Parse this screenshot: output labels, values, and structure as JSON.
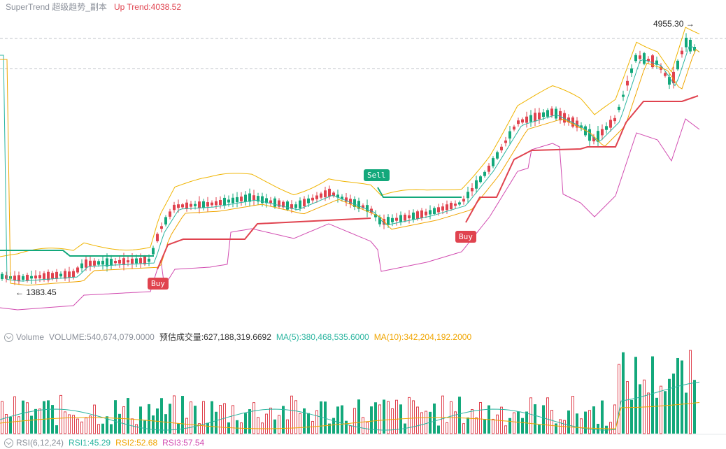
{
  "header": {
    "indicator": "SuperTrend 超级趋势_副本",
    "up_trend_label": "Up Trend:",
    "up_trend_value": "4038.52"
  },
  "price_marks": {
    "high": "4955.30",
    "high_arrow": "→",
    "low": "1383.45",
    "low_arrow": "←"
  },
  "signals": {
    "buy": "Buy",
    "sell": "Sell"
  },
  "volume_header": {
    "title": "Volume",
    "volume": "VOLUME:540,674,079.0000",
    "est": "预估成交量:627,188,319.6692",
    "ma5": "MA(5):380,468,535.6000",
    "ma10": "MA(10):342,204,192.2000"
  },
  "rsi_header": {
    "title": "RSI(6,12,24)",
    "rsi1": "RSI1:45.29",
    "rsi2": "RSI2:52.68",
    "rsi3": "RSI3:57.54"
  },
  "colors": {
    "up": "#13a87b",
    "down": "#e0434f",
    "ma5": "#2bb5a0",
    "ma10": "#f0a500",
    "rsi3": "#d14bb0",
    "band": "#f0b400",
    "lower_band": "#d14bb0"
  },
  "chart_data": {
    "type": "candlestick",
    "title": "SuperTrend 超级趋势_副本",
    "price_range": [
      1383.45,
      4955.3
    ],
    "last_up_trend": 4038.52,
    "guides": [
      4955.3,
      4700
    ],
    "series": [
      {
        "name": "SuperTrend",
        "trend": [
          "down",
          "up",
          "down",
          "up"
        ]
      },
      {
        "name": "Volume",
        "value": 540674079.0,
        "ma5": 380468535.6,
        "ma10": 342204192.2
      },
      {
        "name": "RSI",
        "rsi1": 45.29,
        "rsi2": 52.68,
        "rsi3": 57.54
      }
    ],
    "signals": [
      "Buy",
      "Sell",
      "Buy"
    ]
  }
}
